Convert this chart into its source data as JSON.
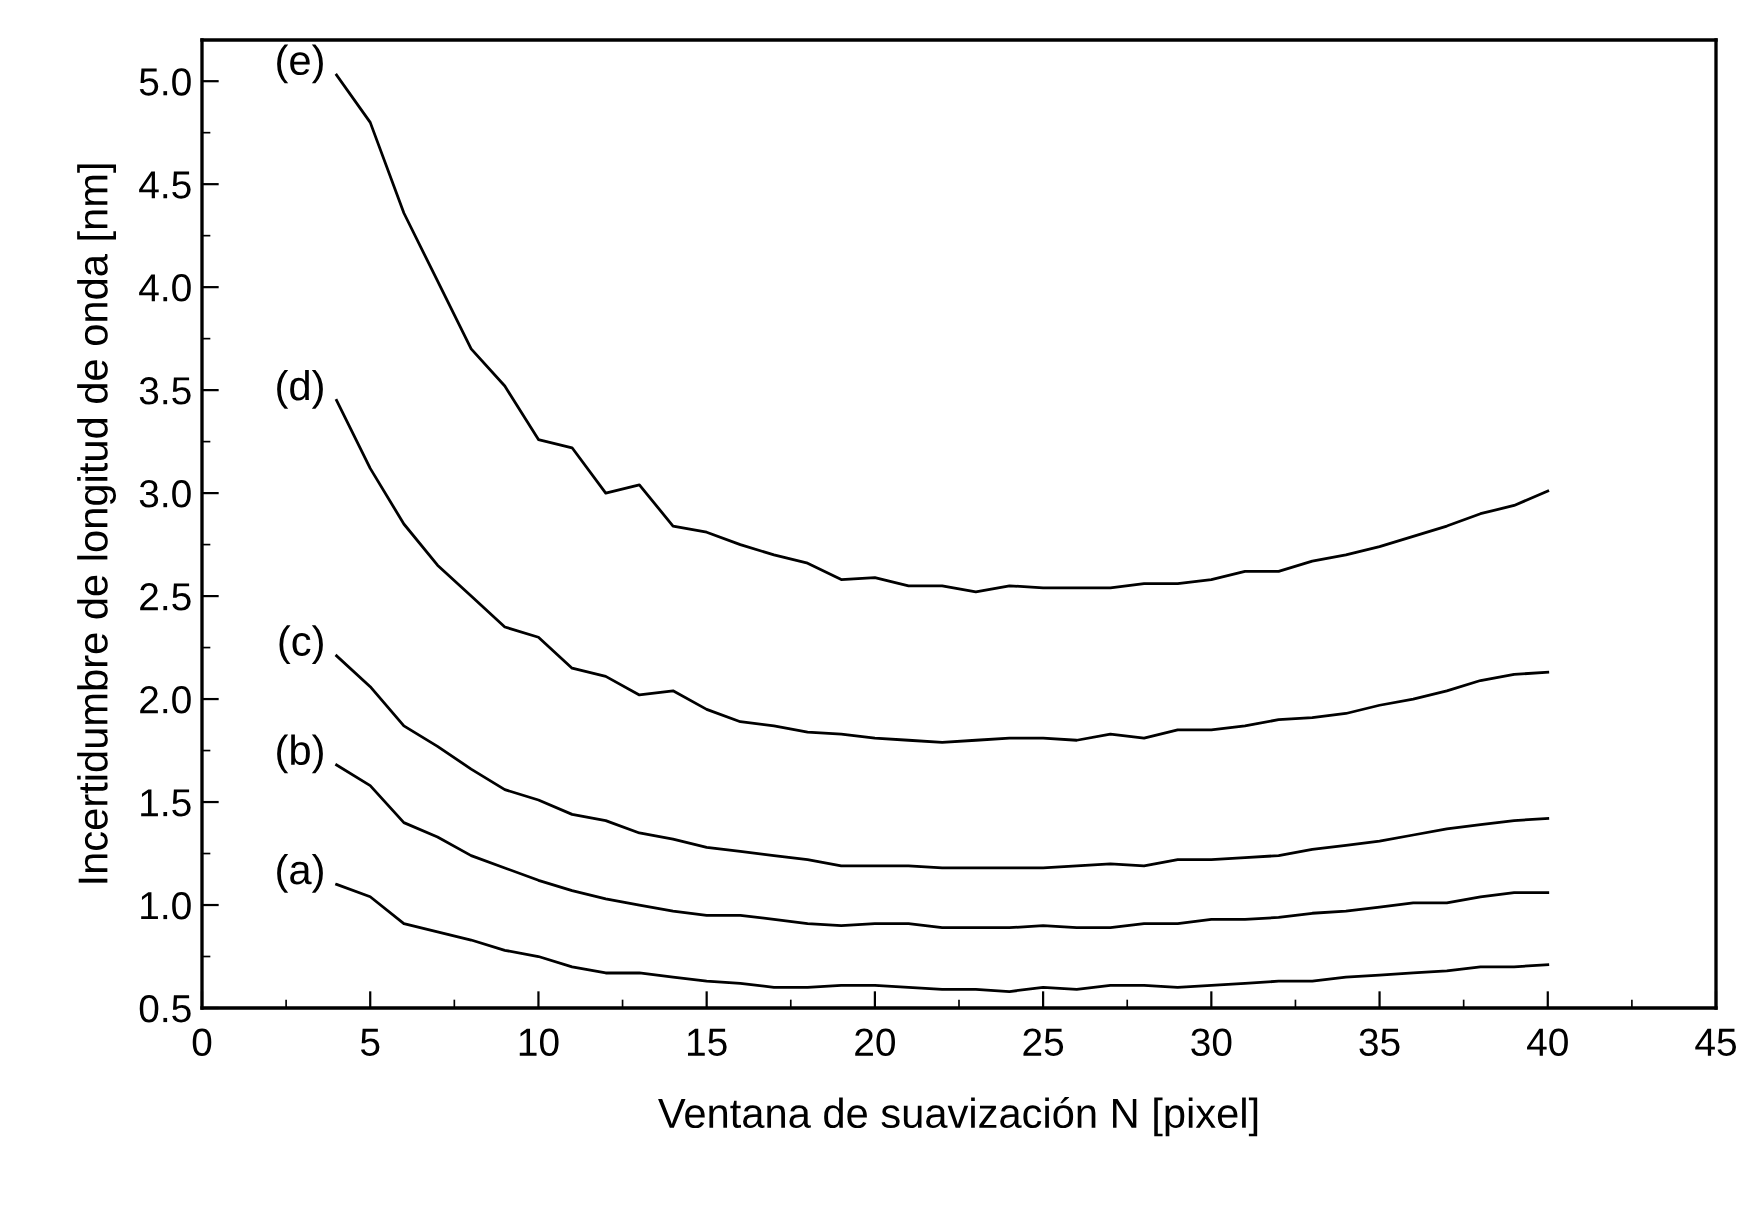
{
  "chart_data": {
    "type": "line",
    "xlabel": "Ventana de suavización N [pixel]",
    "ylabel": "Incertidumbre de longitud de onda [nm]",
    "x": [
      4,
      5,
      6,
      7,
      8,
      9,
      10,
      11,
      12,
      13,
      14,
      15,
      16,
      17,
      18,
      19,
      20,
      21,
      22,
      23,
      24,
      25,
      26,
      27,
      28,
      29,
      30,
      31,
      32,
      33,
      34,
      35,
      36,
      37,
      38,
      39,
      40
    ],
    "series": [
      {
        "name": "(a)",
        "color": "#000000",
        "values": [
          1.1,
          1.04,
          0.91,
          0.87,
          0.83,
          0.78,
          0.75,
          0.7,
          0.67,
          0.67,
          0.65,
          0.63,
          0.62,
          0.6,
          0.6,
          0.61,
          0.61,
          0.6,
          0.59,
          0.59,
          0.58,
          0.6,
          0.59,
          0.61,
          0.61,
          0.6,
          0.61,
          0.62,
          0.63,
          0.63,
          0.65,
          0.66,
          0.67,
          0.68,
          0.7,
          0.7,
          0.71
        ]
      },
      {
        "name": "(b)",
        "color": "#000000",
        "values": [
          1.68,
          1.58,
          1.4,
          1.33,
          1.24,
          1.18,
          1.12,
          1.07,
          1.03,
          1.0,
          0.97,
          0.95,
          0.95,
          0.93,
          0.91,
          0.9,
          0.91,
          0.91,
          0.89,
          0.89,
          0.89,
          0.9,
          0.89,
          0.89,
          0.91,
          0.91,
          0.93,
          0.93,
          0.94,
          0.96,
          0.97,
          0.99,
          1.01,
          1.01,
          1.04,
          1.06,
          1.06
        ]
      },
      {
        "name": "(c)",
        "color": "#000000",
        "values": [
          2.21,
          2.06,
          1.87,
          1.77,
          1.66,
          1.56,
          1.51,
          1.44,
          1.41,
          1.35,
          1.32,
          1.28,
          1.26,
          1.24,
          1.22,
          1.19,
          1.19,
          1.19,
          1.18,
          1.18,
          1.18,
          1.18,
          1.19,
          1.2,
          1.19,
          1.22,
          1.22,
          1.23,
          1.24,
          1.27,
          1.29,
          1.31,
          1.34,
          1.37,
          1.39,
          1.41,
          1.42
        ]
      },
      {
        "name": "(d)",
        "color": "#000000",
        "values": [
          3.45,
          3.12,
          2.85,
          2.65,
          2.5,
          2.35,
          2.3,
          2.15,
          2.11,
          2.02,
          2.04,
          1.95,
          1.89,
          1.87,
          1.84,
          1.83,
          1.81,
          1.8,
          1.79,
          1.8,
          1.81,
          1.81,
          1.8,
          1.83,
          1.81,
          1.85,
          1.85,
          1.87,
          1.9,
          1.91,
          1.93,
          1.97,
          2.0,
          2.04,
          2.09,
          2.12,
          2.13
        ]
      },
      {
        "name": "(e)",
        "color": "#000000",
        "values": [
          5.03,
          4.8,
          4.36,
          4.03,
          3.7,
          3.52,
          3.26,
          3.22,
          3.0,
          3.04,
          2.84,
          2.81,
          2.75,
          2.7,
          2.66,
          2.58,
          2.59,
          2.55,
          2.55,
          2.52,
          2.55,
          2.54,
          2.54,
          2.54,
          2.56,
          2.56,
          2.58,
          2.62,
          2.62,
          2.67,
          2.7,
          2.74,
          2.79,
          2.84,
          2.9,
          2.94,
          3.01
        ]
      }
    ],
    "xlim": [
      0,
      45
    ],
    "ylim": [
      0.5,
      5.2
    ],
    "xticks": [
      0,
      {
        "value": 2.5,
        "label": null
      },
      5,
      {
        "value": 7.5,
        "label": null
      },
      10,
      {
        "value": 12.5,
        "label": null
      },
      15,
      {
        "value": 17.5,
        "label": null
      },
      20,
      {
        "value": 22.5,
        "label": null
      },
      25,
      {
        "value": 27.5,
        "label": null
      },
      30,
      {
        "value": 32.5,
        "label": null
      },
      35,
      {
        "value": 37.5,
        "label": null
      },
      40,
      {
        "value": 42.5,
        "label": null
      },
      45
    ],
    "yticks": [
      {
        "value": 0.5,
        "label": "0.5"
      },
      {
        "value": 0.75,
        "label": null
      },
      {
        "value": 1.0,
        "label": "1.0"
      },
      {
        "value": 1.25,
        "label": null
      },
      {
        "value": 1.5,
        "label": "1.5"
      },
      {
        "value": 1.75,
        "label": null
      },
      {
        "value": 2.0,
        "label": "2.0"
      },
      {
        "value": 2.25,
        "label": null
      },
      {
        "value": 2.5,
        "label": "2.5"
      },
      {
        "value": 2.75,
        "label": null
      },
      {
        "value": 3.0,
        "label": "3.0"
      },
      {
        "value": 3.25,
        "label": null
      },
      {
        "value": 3.5,
        "label": "3.5"
      },
      {
        "value": 3.75,
        "label": null
      },
      {
        "value": 4.0,
        "label": "4.0"
      },
      {
        "value": 4.25,
        "label": null
      },
      {
        "value": 4.5,
        "label": "4.5"
      },
      {
        "value": 4.75,
        "label": null
      },
      {
        "value": 5.0,
        "label": "5.0"
      }
    ],
    "grid": false,
    "legend": false,
    "marker": "none",
    "line_style": "solid"
  }
}
